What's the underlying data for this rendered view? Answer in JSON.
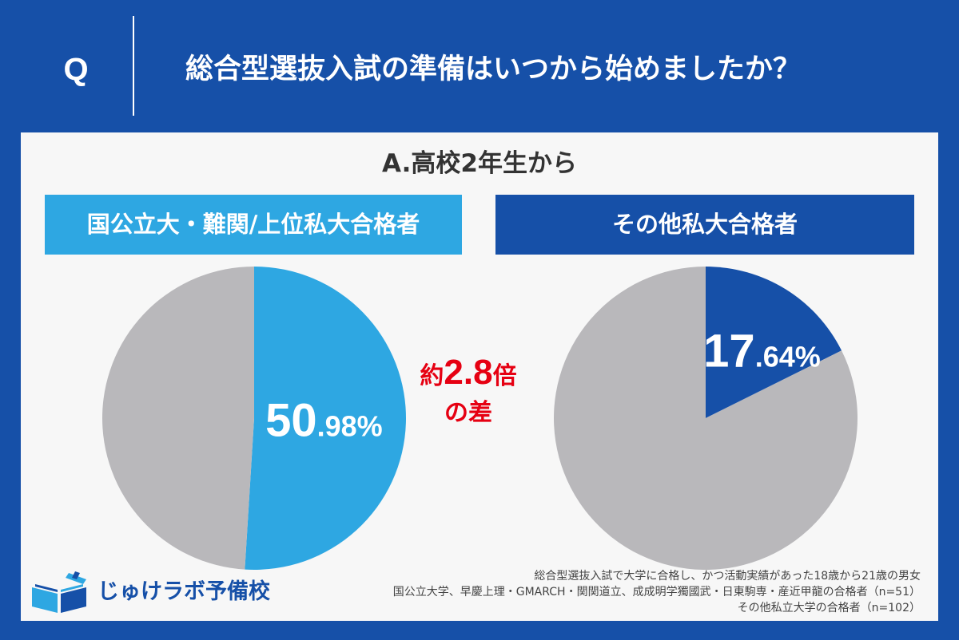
{
  "header": {
    "q_mark": "Q",
    "question": "総合型選抜入試の準備はいつから始めましたか？"
  },
  "answer": "A.高校2年生から",
  "colors": {
    "background": "#1650a8",
    "panel": "#f7f7f7",
    "light_blue": "#2ea7e2",
    "dark_blue": "#1650a8",
    "gray": "#b9b8bb",
    "accent_red": "#e60012"
  },
  "chart_data": [
    {
      "type": "pie",
      "title": "国公立大・難関/上位私大合格者",
      "slices": [
        {
          "label": "高校2年生から",
          "value": 50.98,
          "color": "#2ea7e2"
        },
        {
          "label": "",
          "value": 49.02,
          "color": "#b9b8bb"
        }
      ],
      "highlight_label": {
        "integer": "50",
        "decimal": ".98%"
      }
    },
    {
      "type": "pie",
      "title": "その他私大合格者",
      "slices": [
        {
          "label": "高校2年生から",
          "value": 17.64,
          "color": "#1650a8"
        },
        {
          "label": "",
          "value": 82.36,
          "color": "#b9b8bb"
        }
      ],
      "highlight_label": {
        "integer": "17",
        "decimal": ".64%"
      }
    }
  ],
  "comparison": {
    "prefix": "約",
    "number": "2.8",
    "suffix": "倍",
    "line2": "の差"
  },
  "logo": {
    "text": "じゅけラボ予備校",
    "icon": "open-book-icon"
  },
  "notes": [
    "総合型選抜入試で大学に合格し、かつ活動実績があった18歳から21歳の男女",
    "国公立大学、早慶上理・GMARCH・関関道立、成成明学獨國武・日東駒専・産近甲龍の合格者（n=51）",
    "その他私立大学の合格者（n=102）"
  ]
}
